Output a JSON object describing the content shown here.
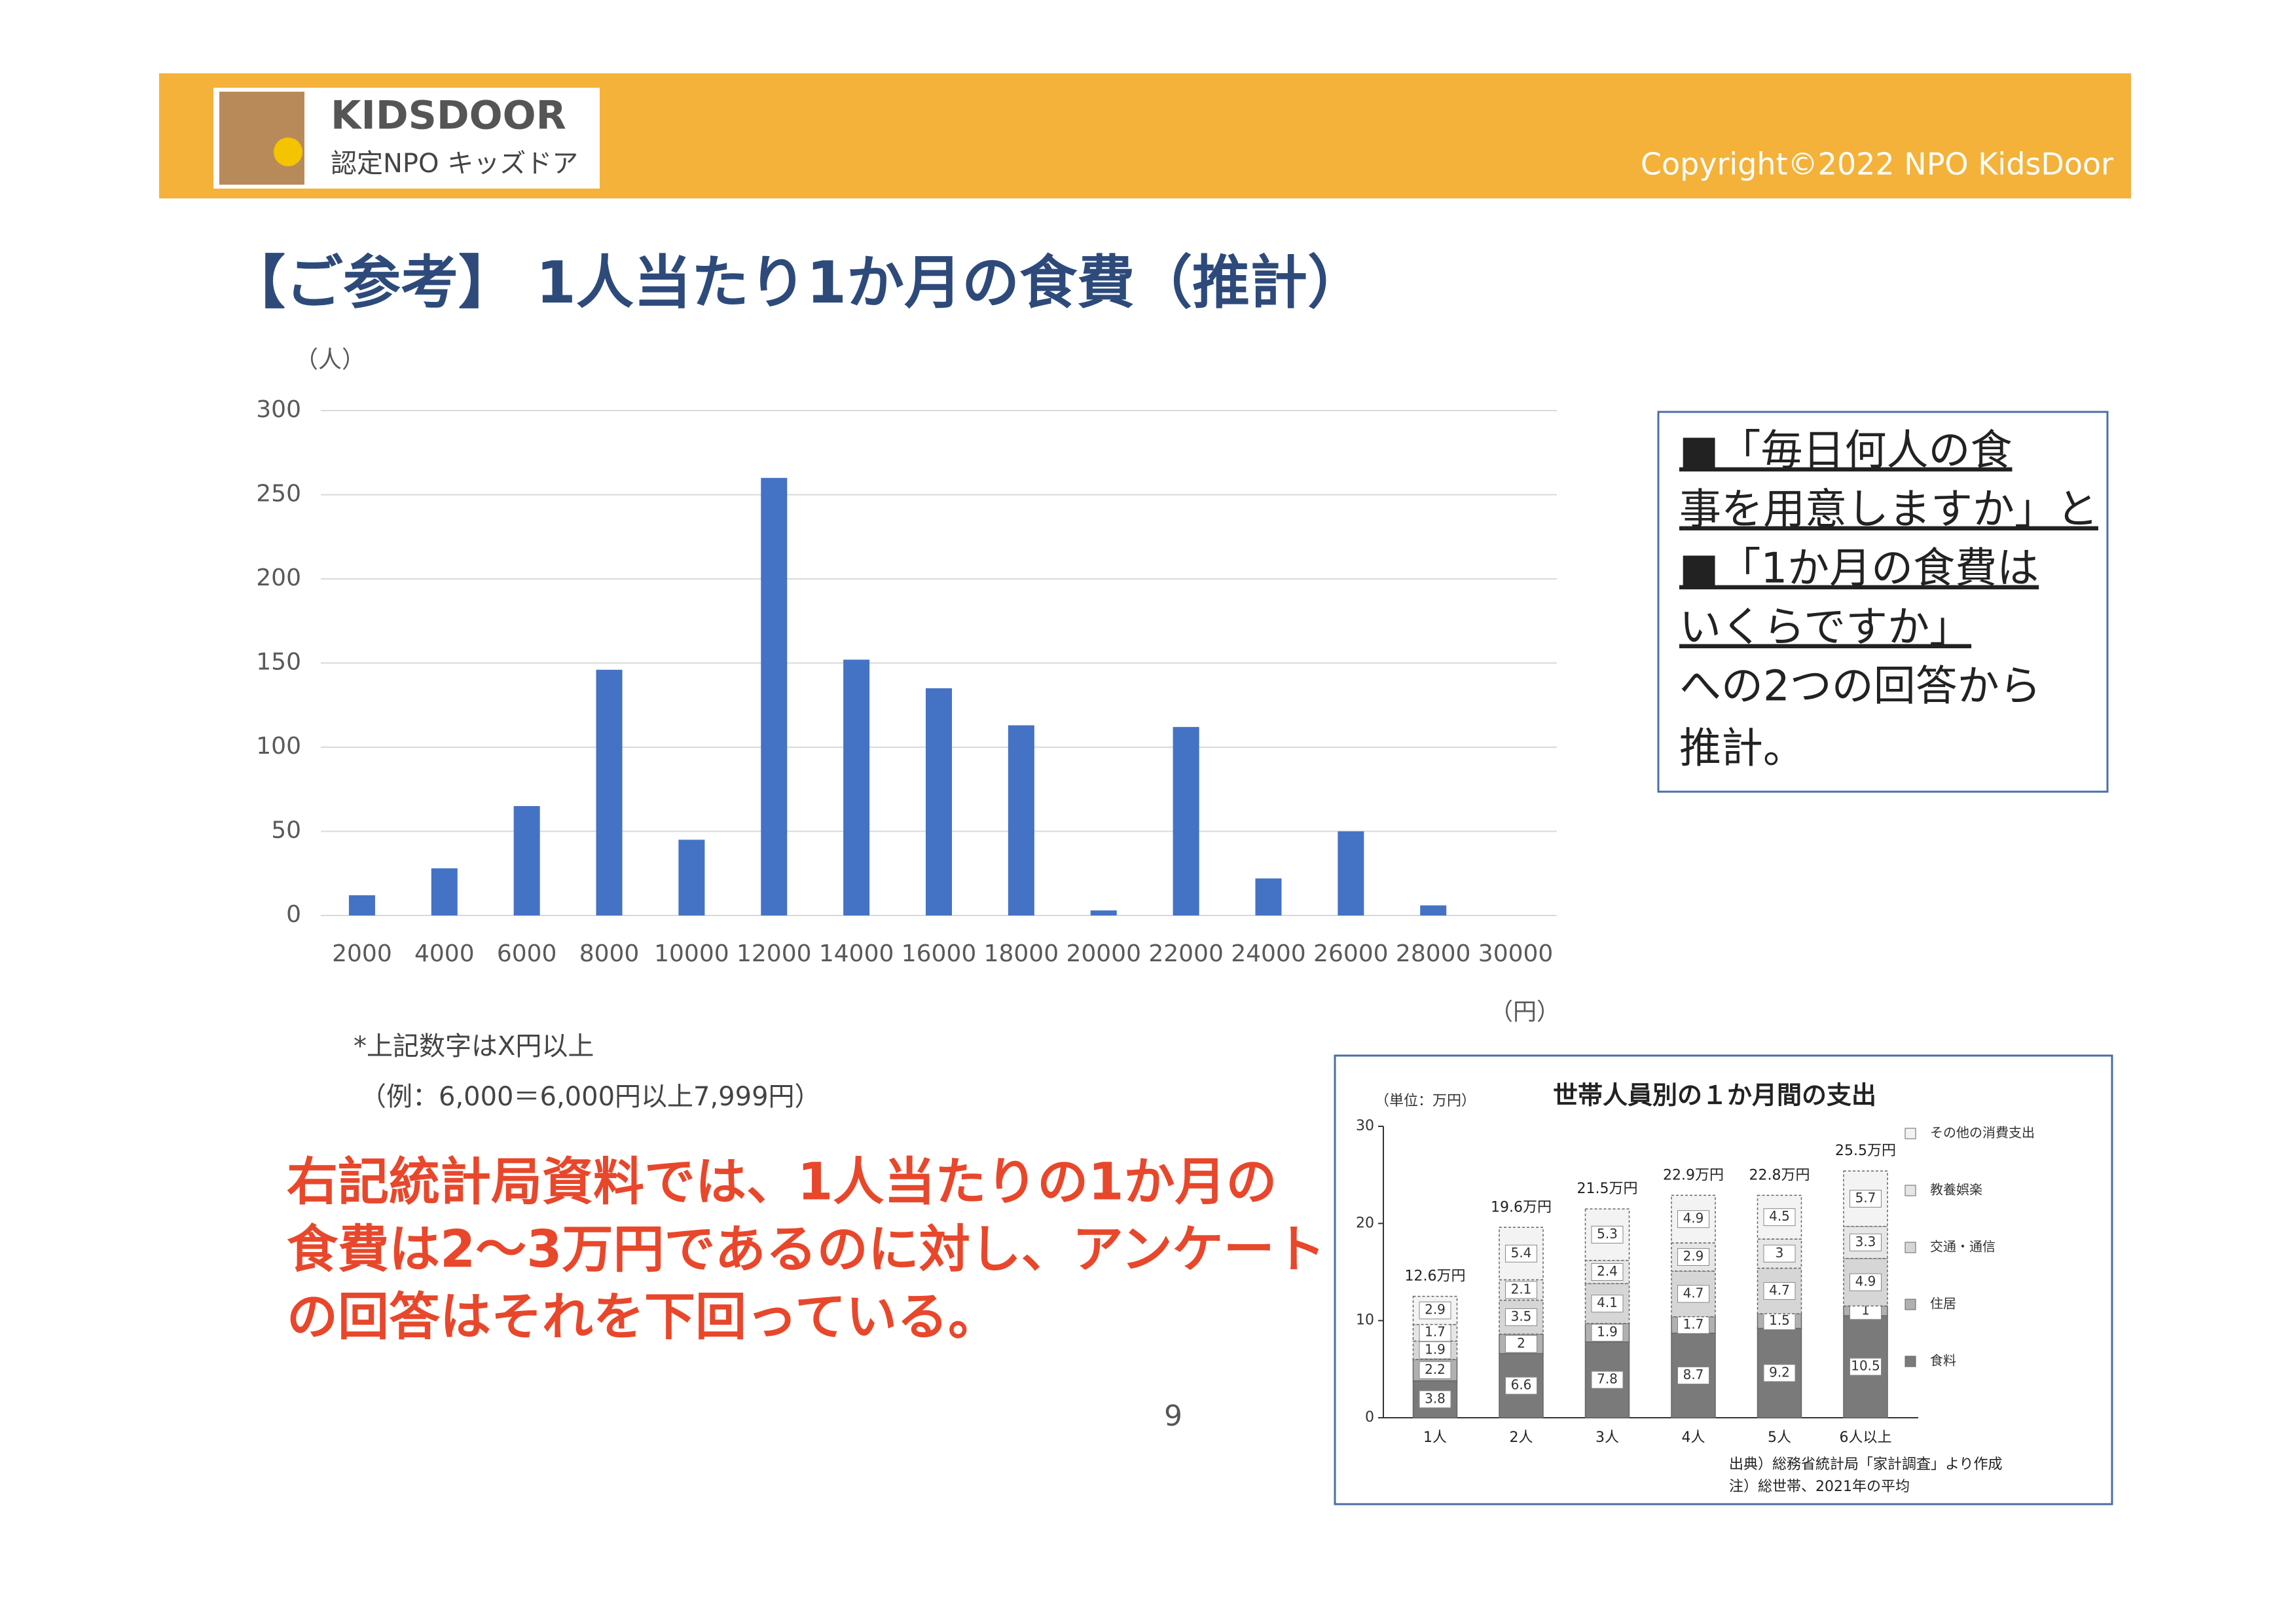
{
  "header": {
    "logo_title": "KIDSDOOR",
    "logo_subtitle": "認定NPO キッズドア",
    "copyright": "Copyright©2022 NPO KidsDoor"
  },
  "title": "【ご参考】 1人当たり1か月の食費（推計）",
  "notes": [
    "*上記数字はX円以上",
    "（例：6,000＝6,000円以上7,999円）"
  ],
  "conclusion": [
    "右記統計局資料では、1人当たりの1か月の",
    "食費は2～3万円であるのに対し、アンケート",
    "の回答はそれを下回っている。"
  ],
  "callout": [
    "■「毎日何人の食",
    "事を用意しますか」と",
    "■「1か月の食費は",
    "いくらですか」",
    "への2つの回答から",
    "推計。"
  ],
  "page_number": "9",
  "chart_data": [
    {
      "type": "bar",
      "y_label": "（人）",
      "x_label": "（円）",
      "categories": [
        "2000",
        "4000",
        "6000",
        "8000",
        "10000",
        "12000",
        "14000",
        "16000",
        "18000",
        "20000",
        "22000",
        "24000",
        "26000",
        "28000",
        "30000"
      ],
      "values": [
        12,
        28,
        65,
        146,
        45,
        260,
        152,
        135,
        113,
        3,
        112,
        22,
        50,
        6,
        0
      ],
      "color": "#4472c4",
      "ylim": [
        0,
        300
      ],
      "yticks": [
        0,
        50,
        100,
        150,
        200,
        250,
        300
      ],
      "grid": true
    },
    {
      "type": "stacked_bar",
      "title": "世帯人員別の１か月間の支出",
      "y_label": "（単位：万円）",
      "categories": [
        "1人",
        "2人",
        "3人",
        "4人",
        "5人",
        "6人以上"
      ],
      "series": [
        {
          "name": "食料",
          "color": "#7a7a7a",
          "values": [
            3.8,
            6.6,
            7.8,
            8.7,
            9.2,
            10.5
          ]
        },
        {
          "name": "住居",
          "color": "#b0b0b0",
          "values": [
            2.2,
            2.0,
            1.9,
            1.7,
            1.5,
            1.0
          ]
        },
        {
          "name": "交通・通信",
          "color": "#d6d6d6",
          "values": [
            1.9,
            3.5,
            4.1,
            4.7,
            4.7,
            4.9
          ]
        },
        {
          "name": "教養娯楽",
          "color": "#e6e6e6",
          "values": [
            1.7,
            2.1,
            2.4,
            2.9,
            3.0,
            3.3
          ]
        },
        {
          "name": "その他の消費支出",
          "color": "#f3f3f3",
          "values": [
            2.9,
            5.4,
            5.3,
            4.9,
            4.5,
            5.7
          ]
        }
      ],
      "total_labels": [
        "12.6万円",
        "19.6万円",
        "21.5万円",
        "22.9万円",
        "22.8万円",
        "25.5万円"
      ],
      "ylim": [
        0,
        30
      ],
      "yticks": [
        0,
        10,
        20,
        30
      ],
      "source_notes": [
        "出典）総務省統計局「家計調査」より作成",
        "注）総世帯、2021年の平均"
      ]
    }
  ]
}
